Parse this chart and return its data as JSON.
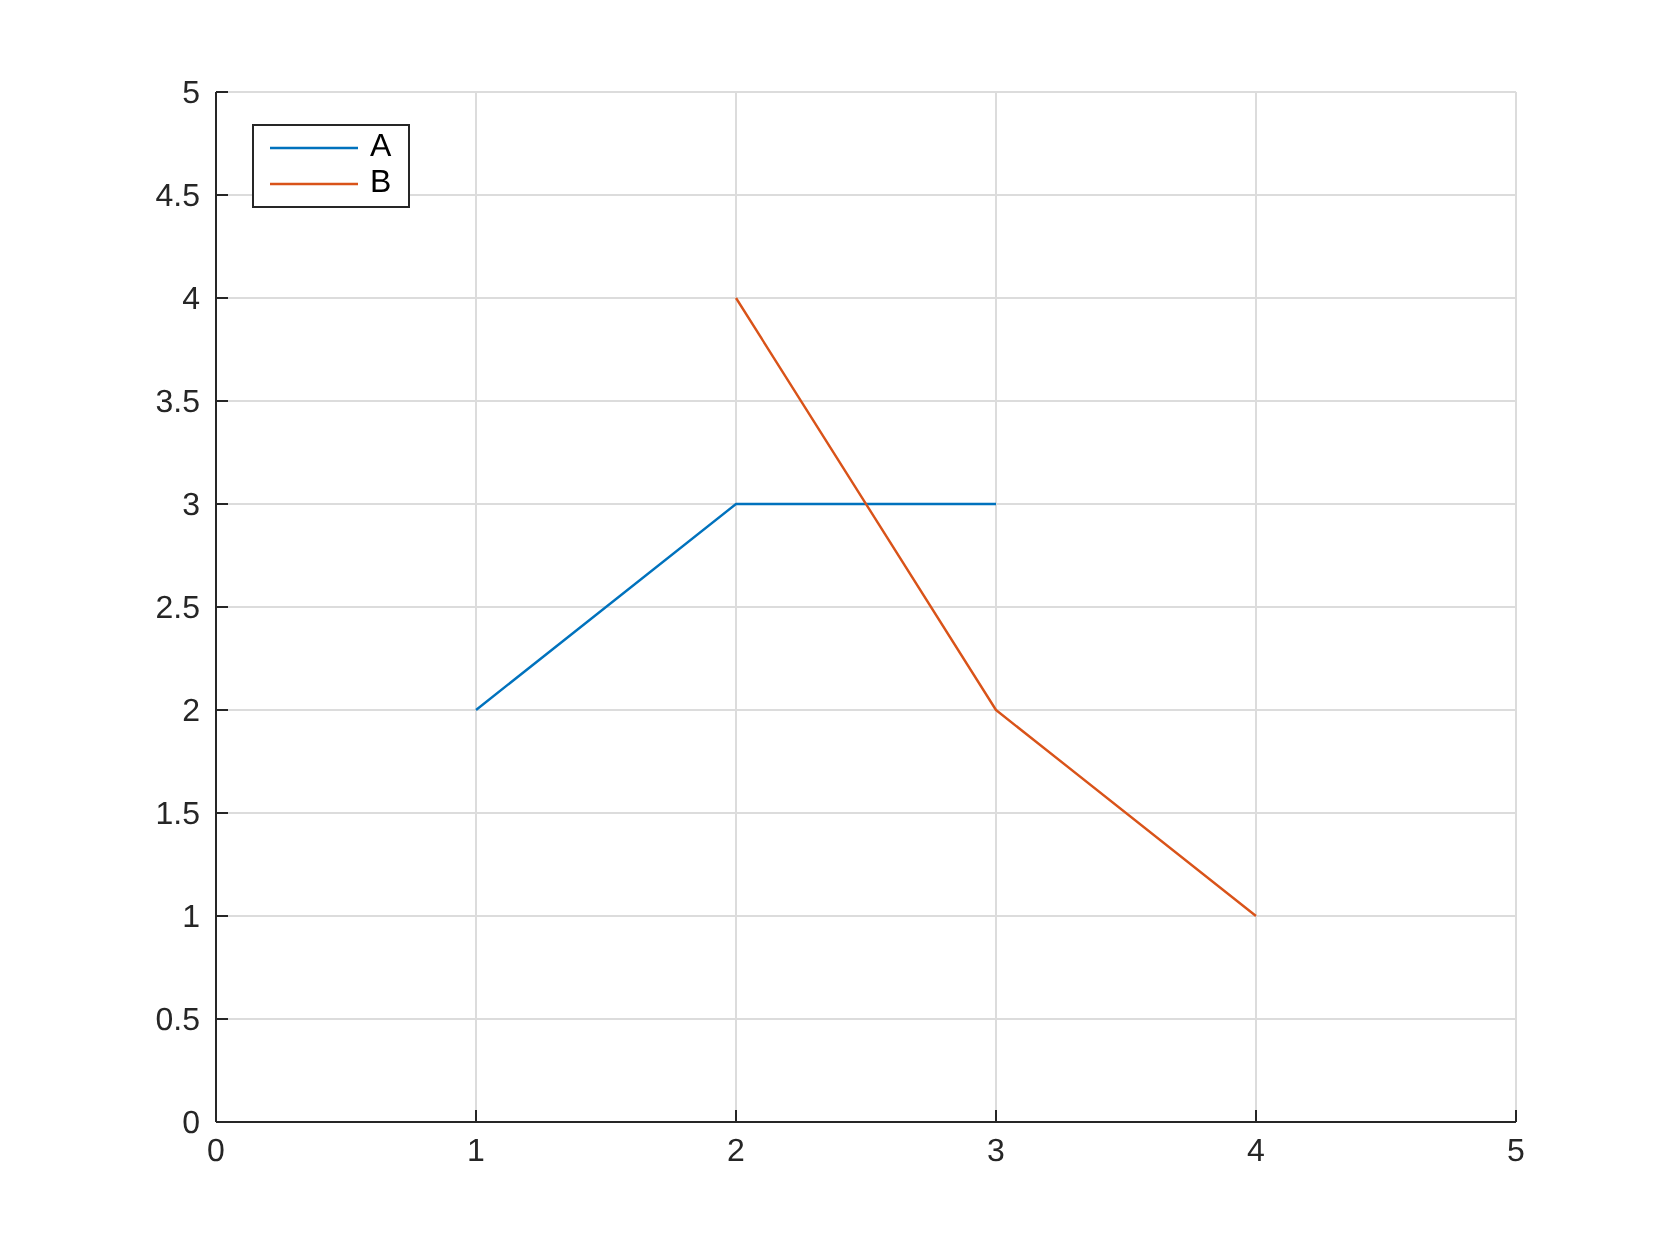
{
  "chart_data": {
    "type": "line",
    "xlim": [
      0,
      5
    ],
    "xticks": [
      0,
      1,
      2,
      3,
      4,
      5
    ],
    "ylim": [
      0,
      5
    ],
    "yticks": [
      0,
      0.5,
      1,
      1.5,
      2,
      2.5,
      3,
      3.5,
      4,
      4.5,
      5
    ],
    "grid": true,
    "legend": "top left",
    "marker": "none",
    "line_style": "solid",
    "series": [
      {
        "name": "A",
        "color": "#0072bd",
        "x": [
          1,
          2,
          3
        ],
        "values": [
          2,
          3,
          3
        ]
      },
      {
        "name": "B",
        "color": "#d95319",
        "x": [
          2,
          3,
          4
        ],
        "values": [
          4,
          2,
          1
        ]
      }
    ]
  }
}
